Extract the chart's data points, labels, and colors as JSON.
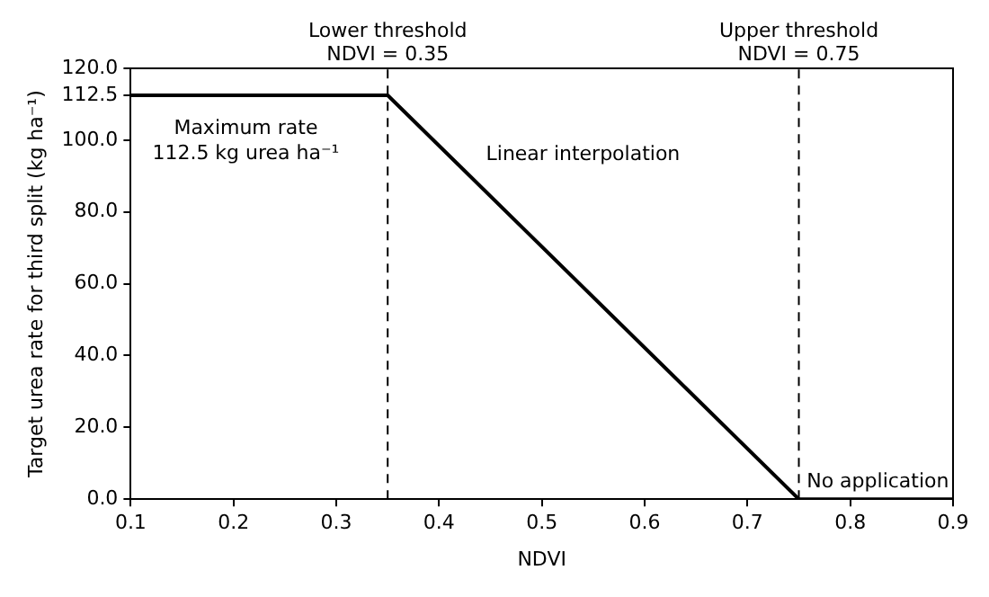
{
  "chart_data": {
    "type": "line",
    "xlabel": "NDVI",
    "ylabel": "Target urea rate for third split (kg ha⁻¹)",
    "x": [
      0.1,
      0.35,
      0.75,
      0.9
    ],
    "series": [
      {
        "color": "#000000",
        "values": [
          112.5,
          112.5,
          0,
          0
        ]
      }
    ],
    "xlim": [
      0.1,
      0.9
    ],
    "xticks": [
      0.1,
      0.2,
      0.3,
      0.4,
      0.5,
      0.6,
      0.7,
      0.8,
      0.9
    ],
    "ylim": [
      0,
      120
    ],
    "yticks": [
      {
        "value": 0,
        "label": "0.0"
      },
      {
        "value": 20,
        "label": "20.0"
      },
      {
        "value": 40,
        "label": "40.0"
      },
      {
        "value": 60,
        "label": "60.0"
      },
      {
        "value": 80,
        "label": "80.0"
      },
      {
        "value": 100,
        "label": "100.0"
      },
      112.5,
      {
        "value": 120,
        "label": "120.0"
      }
    ],
    "ref_lines": [
      {
        "axis": "x",
        "value": 0.35,
        "label": "Lower threshold\nNDVI = 0.35",
        "color": "#000000",
        "line_style": "dashed"
      },
      {
        "axis": "x",
        "value": 0.75,
        "label": "Upper threshold\nNDVI = 0.75",
        "color": "#000000",
        "line_style": "dashed"
      }
    ],
    "annotations": [
      "Maximum rate\n112.5 kg urea ha⁻¹",
      "Linear interpolation",
      "No application"
    ],
    "grid": false,
    "legend": false,
    "marker": "none",
    "line_style": "solid"
  }
}
